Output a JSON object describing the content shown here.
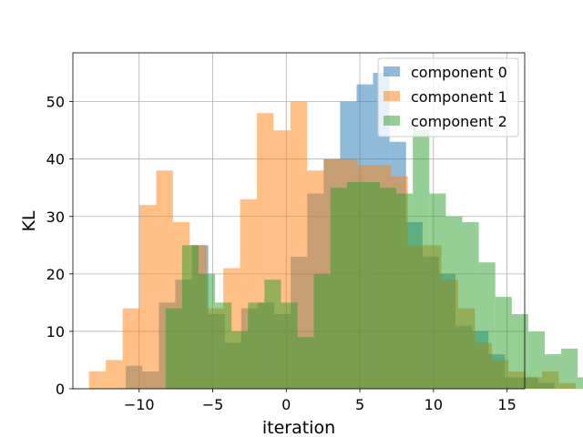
{
  "chart_data": {
    "type": "histogram",
    "xlabel": "iteration",
    "ylabel": "KL",
    "xlim": [
      -14.5,
      16.2
    ],
    "ylim": [
      0,
      58.5
    ],
    "xticks": [
      -10,
      -5,
      0,
      5,
      10,
      15
    ],
    "xtick_labels": [
      "−10",
      "−5",
      "0",
      "5",
      "10",
      "15"
    ],
    "yticks": [
      0,
      10,
      20,
      30,
      40,
      50
    ],
    "ytick_labels": [
      "0",
      "10",
      "20",
      "30",
      "40",
      "50"
    ],
    "grid": true,
    "legend_position": "top-right",
    "series": [
      {
        "name": "component 0",
        "color": "#1f77b4",
        "alpha": 0.5,
        "bin_start": -10.9,
        "bin_width": 1.12,
        "values": [
          4,
          3,
          15,
          19,
          25,
          13,
          8,
          14,
          15,
          13,
          23,
          34,
          40,
          50,
          53,
          55,
          43,
          29,
          23,
          20,
          11,
          10,
          6,
          2,
          2,
          1
        ]
      },
      {
        "name": "component 1",
        "color": "#ff7f0e",
        "alpha": 0.5,
        "bin_start": -13.4,
        "bin_width": 1.14,
        "values": [
          3,
          5,
          14,
          32,
          38,
          29,
          25,
          14,
          21,
          33,
          48,
          45,
          50,
          38,
          40,
          40,
          39,
          39,
          37,
          25,
          25,
          19,
          14,
          8,
          5,
          3,
          2,
          3,
          1
        ]
      },
      {
        "name": "component 2",
        "color": "#2ca02c",
        "alpha": 0.5,
        "bin_start": -8.2,
        "bin_width": 1.12,
        "values": [
          14,
          25,
          20,
          15,
          10,
          15,
          19,
          15,
          9,
          20,
          35,
          36,
          36,
          35,
          34,
          45,
          34,
          30,
          29,
          22,
          16,
          13,
          10,
          6,
          7,
          2
        ]
      }
    ]
  }
}
